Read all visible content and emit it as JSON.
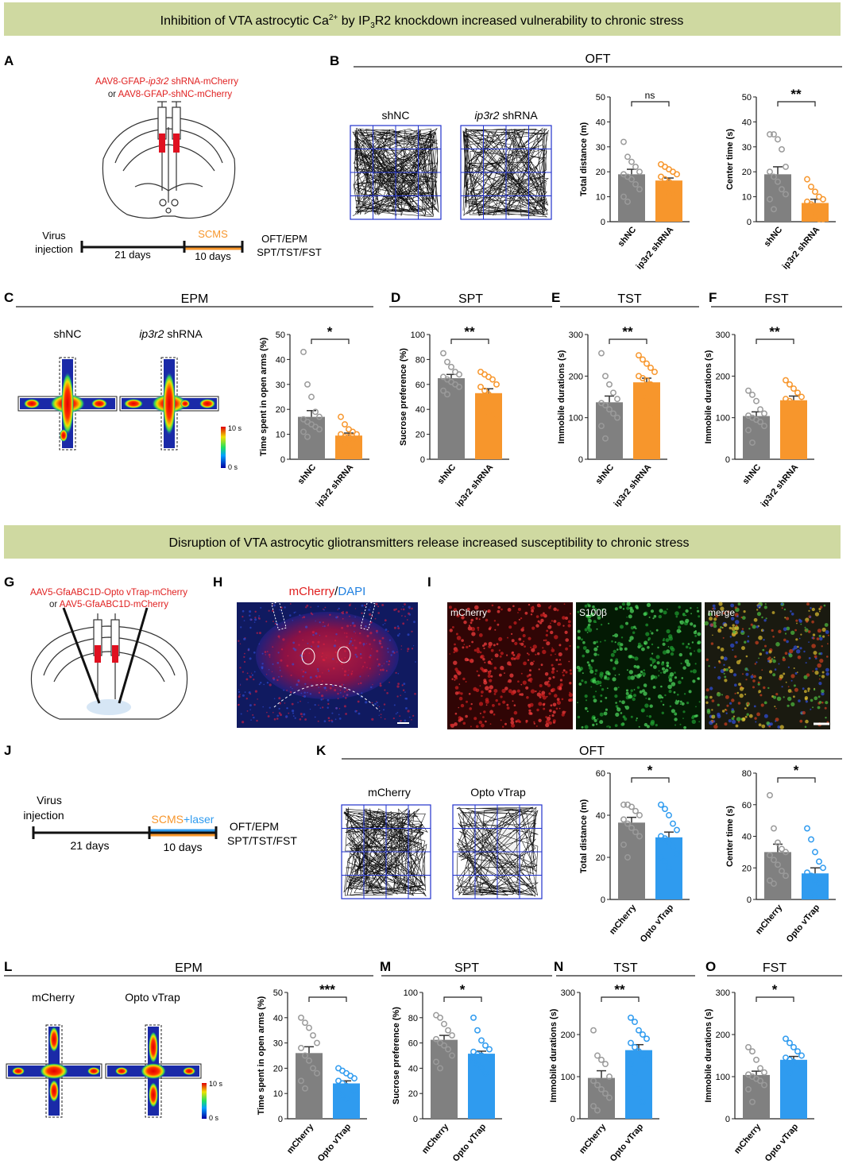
{
  "banner_top": [
    "Inhibition of VTA astrocytic Ca",
    "2+",
    " by IP",
    "3",
    "R2 knockdown increased vulnerability to chronic stress"
  ],
  "banner_bottom": "Disruption of VTA astrocytic gliotransmitters release increased susceptibility to chronic stress",
  "letters": [
    "A",
    "B",
    "C",
    "D",
    "E",
    "F",
    "G",
    "H",
    "I",
    "J",
    "K",
    "L",
    "M",
    "N",
    "O"
  ],
  "sections": [
    "OFT",
    "EPM",
    "SPT",
    "TST",
    "FST",
    "OFT",
    "EPM",
    "SPT",
    "TST",
    "FST"
  ],
  "panel_a": {
    "virus_line1": [
      "AAV8-GFAP-",
      "ip3r2",
      " shRNA-mCherry"
    ],
    "virus_line2": [
      "or ",
      "AAV8-GFAP-shNC-mCherry"
    ],
    "virus": "Virus",
    "injection": "injection",
    "days1": "21 days",
    "scms": "SCMS",
    "days2": "10 days",
    "tests1": "OFT/EPM",
    "tests2": "SPT/TST/FST"
  },
  "panel_b_labels": {
    "left": "shNC",
    "right": [
      "ip3r2",
      " shRNA"
    ]
  },
  "panel_c_labels": {
    "left": "shNC",
    "right": [
      "ip3r2",
      " shRNA"
    ],
    "scale_max": "10 s",
    "scale_min": "0 s"
  },
  "panel_g": {
    "virus_line1": "AAV5-GfaABC1D-Opto vTrap-mCherry",
    "virus_line2": [
      "or ",
      "AAV5-GfaABC1D-mCherry"
    ]
  },
  "panel_h": {
    "stain": [
      "mCherry",
      "/",
      "DAPI"
    ]
  },
  "panel_i": {
    "labels": [
      "mCherry",
      "S100β",
      "merge"
    ]
  },
  "panel_j": {
    "virus": "Virus",
    "injection": "injection",
    "days1": "21 days",
    "scms": "SCMS",
    "laser": "+laser",
    "days2": "10 days",
    "tests1": "OFT/EPM",
    "tests2": "SPT/TST/FST"
  },
  "panel_k_labels": {
    "left": "mCherry",
    "right": "Opto vTrap"
  },
  "panel_l_labels": {
    "left": "mCherry",
    "right": "Opto vTrap",
    "scale_max": "10 s",
    "scale_min": "0 s"
  },
  "charts": [
    {
      "type": "bar",
      "ylabel": "Total distance (m)",
      "ylim": [
        0,
        50
      ],
      "yticks": [
        0,
        10,
        20,
        30,
        40,
        50
      ],
      "significance": "ns",
      "categories": [
        "shNC",
        "ip3r2 shRNA"
      ],
      "colors": [
        "#808080",
        "#f7962c"
      ],
      "values": [
        19,
        16.5
      ],
      "errors": [
        2,
        1
      ],
      "points": [
        [
          32,
          26,
          24,
          22,
          20,
          19,
          18,
          17,
          15,
          13,
          10,
          8
        ],
        [
          23,
          22,
          21,
          20,
          19,
          18,
          17,
          16,
          15,
          15,
          14,
          13,
          12,
          11,
          10,
          9
        ]
      ]
    },
    {
      "type": "bar",
      "ylabel": "Center time (s)",
      "ylim": [
        0,
        50
      ],
      "yticks": [
        0,
        10,
        20,
        30,
        40,
        50
      ],
      "significance": "**",
      "categories": [
        "shNC",
        "ip3r2 shRNA"
      ],
      "colors": [
        "#808080",
        "#f7962c"
      ],
      "values": [
        19,
        7.5
      ],
      "errors": [
        3,
        1.5
      ],
      "points": [
        [
          35,
          35,
          33,
          29,
          22,
          20,
          18,
          16,
          13,
          11,
          9,
          5
        ],
        [
          17,
          14,
          12,
          10,
          9,
          8,
          7,
          6,
          6,
          5,
          4,
          3,
          2,
          1,
          1,
          2
        ]
      ]
    },
    {
      "type": "bar",
      "ylabel": "Time spent in open arms (%)",
      "ylim": [
        0,
        50
      ],
      "yticks": [
        0,
        10,
        20,
        30,
        40,
        50
      ],
      "significance": "*",
      "categories": [
        "shNC",
        "ip3r2 shRNA"
      ],
      "colors": [
        "#808080",
        "#f7962c"
      ],
      "values": [
        17,
        9.5
      ],
      "errors": [
        2.5,
        1
      ],
      "points": [
        [
          43,
          30,
          25,
          19,
          17,
          16,
          15,
          14,
          13,
          12,
          11,
          9
        ],
        [
          17,
          14,
          12,
          11,
          10,
          10,
          9,
          9,
          8,
          8,
          7,
          6,
          5,
          4,
          3
        ]
      ]
    },
    {
      "type": "bar",
      "ylabel": "Sucrose preference (%)",
      "ylim": [
        0,
        100
      ],
      "yticks": [
        0,
        20,
        40,
        60,
        80,
        100
      ],
      "significance": "**",
      "categories": [
        "shNC",
        "ip3r2 shRNA"
      ],
      "colors": [
        "#808080",
        "#f7962c"
      ],
      "values": [
        65,
        53
      ],
      "errors": [
        3,
        3.5
      ],
      "points": [
        [
          85,
          78,
          74,
          70,
          68,
          66,
          64,
          62,
          60,
          58,
          55,
          52
        ],
        [
          70,
          68,
          66,
          64,
          60,
          58,
          55,
          52,
          50,
          48,
          45,
          42,
          38,
          36,
          32
        ]
      ]
    },
    {
      "type": "bar",
      "ylabel": "Immobile durations (s)",
      "ylim": [
        0,
        300
      ],
      "yticks": [
        0,
        100,
        200,
        300
      ],
      "significance": "**",
      "categories": [
        "shNC",
        "ip3r2 shRNA"
      ],
      "colors": [
        "#808080",
        "#f7962c"
      ],
      "values": [
        137,
        185
      ],
      "errors": [
        15,
        10
      ],
      "points": [
        [
          255,
          200,
          180,
          160,
          145,
          135,
          130,
          120,
          110,
          100,
          80,
          50
        ],
        [
          250,
          240,
          230,
          220,
          210,
          200,
          195,
          190,
          180,
          170,
          160,
          150,
          140,
          120,
          100
        ]
      ]
    },
    {
      "type": "bar",
      "ylabel": "Immobile durations (s)",
      "ylim": [
        0,
        300
      ],
      "yticks": [
        0,
        100,
        200,
        300
      ],
      "significance": "**",
      "categories": [
        "shNC",
        "ip3r2 shRNA"
      ],
      "colors": [
        "#808080",
        "#f7962c"
      ],
      "values": [
        104,
        142
      ],
      "errors": [
        10,
        10
      ],
      "points": [
        [
          165,
          155,
          140,
          120,
          110,
          105,
          100,
          95,
          90,
          80,
          70,
          40
        ],
        [
          190,
          180,
          170,
          160,
          150,
          145,
          140,
          135,
          130,
          120,
          110,
          100,
          90,
          80
        ]
      ]
    },
    {
      "type": "bar",
      "ylabel": "Total distance (m)",
      "ylim": [
        0,
        60
      ],
      "yticks": [
        0,
        20,
        40,
        60
      ],
      "significance": "*",
      "categories": [
        "mCherry",
        "Opto vTrap"
      ],
      "colors": [
        "#808080",
        "#2f9bef"
      ],
      "values": [
        36.5,
        29.5
      ],
      "errors": [
        2.5,
        2.5
      ],
      "points": [
        [
          45,
          45,
          44,
          42,
          40,
          38,
          36,
          34,
          32,
          30,
          26,
          20
        ],
        [
          45,
          43,
          40,
          36,
          33,
          30,
          29,
          27,
          25,
          22,
          20,
          18,
          15
        ]
      ]
    },
    {
      "type": "bar",
      "ylabel": "Center time (s)",
      "ylim": [
        0,
        80
      ],
      "yticks": [
        0,
        20,
        40,
        60,
        80
      ],
      "significance": "*",
      "categories": [
        "mCherry",
        "Opto vTrap"
      ],
      "colors": [
        "#808080",
        "#2f9bef"
      ],
      "values": [
        30,
        16.5
      ],
      "errors": [
        5,
        3.5
      ],
      "points": [
        [
          66,
          45,
          36,
          32,
          30,
          28,
          25,
          22,
          18,
          15,
          12,
          10
        ],
        [
          45,
          38,
          30,
          24,
          20,
          17,
          15,
          12,
          10,
          8,
          6,
          4,
          2
        ]
      ]
    },
    {
      "type": "bar",
      "ylabel": "Time spent in open arms (%)",
      "ylim": [
        0,
        50
      ],
      "yticks": [
        0,
        10,
        20,
        30,
        40,
        50
      ],
      "significance": "***",
      "categories": [
        "mCherry",
        "Opto vTrap"
      ],
      "colors": [
        "#808080",
        "#2f9bef"
      ],
      "values": [
        26,
        14
      ],
      "errors": [
        2.5,
        1
      ],
      "points": [
        [
          40,
          38,
          36,
          33,
          30,
          28,
          25,
          23,
          20,
          18,
          15,
          12
        ],
        [
          20,
          19,
          18,
          17,
          16,
          15,
          14,
          13,
          12,
          11,
          10,
          9,
          8
        ]
      ]
    },
    {
      "type": "bar",
      "ylabel": "Sucrose preference (%)",
      "ylim": [
        0,
        100
      ],
      "yticks": [
        0,
        20,
        40,
        60,
        80,
        100
      ],
      "significance": "*",
      "categories": [
        "mCherry",
        "Opto vTrap"
      ],
      "colors": [
        "#808080",
        "#2f9bef"
      ],
      "values": [
        62.5,
        51.5
      ],
      "errors": [
        3.5,
        2
      ],
      "points": [
        [
          82,
          80,
          75,
          70,
          66,
          63,
          60,
          58,
          55,
          50,
          45,
          40
        ],
        [
          80,
          70,
          62,
          58,
          55,
          53,
          51,
          50,
          49,
          47,
          45,
          43,
          40,
          36
        ]
      ]
    },
    {
      "type": "bar",
      "ylabel": "Immobile durations (s)",
      "ylim": [
        0,
        300
      ],
      "yticks": [
        0,
        100,
        200,
        300
      ],
      "significance": "**",
      "categories": [
        "mCherry",
        "Opto vTrap"
      ],
      "colors": [
        "#808080",
        "#2f9bef"
      ],
      "values": [
        97,
        163
      ],
      "errors": [
        17,
        13
      ],
      "points": [
        [
          210,
          150,
          140,
          130,
          100,
          90,
          80,
          70,
          60,
          50,
          30,
          20
        ],
        [
          240,
          230,
          210,
          200,
          190,
          180,
          170,
          160,
          150,
          140,
          130,
          110,
          70,
          40
        ]
      ]
    },
    {
      "type": "bar",
      "ylabel": "Immobile durations (s)",
      "ylim": [
        0,
        300
      ],
      "yticks": [
        0,
        100,
        200,
        300
      ],
      "significance": "*",
      "categories": [
        "mCherry",
        "Opto vTrap"
      ],
      "colors": [
        "#808080",
        "#2f9bef"
      ],
      "values": [
        104,
        140
      ],
      "errors": [
        9,
        8
      ],
      "points": [
        [
          170,
          160,
          140,
          120,
          110,
          105,
          100,
          95,
          90,
          80,
          70,
          40
        ],
        [
          190,
          180,
          170,
          160,
          150,
          145,
          140,
          135,
          130,
          125,
          120,
          110
        ]
      ]
    }
  ]
}
